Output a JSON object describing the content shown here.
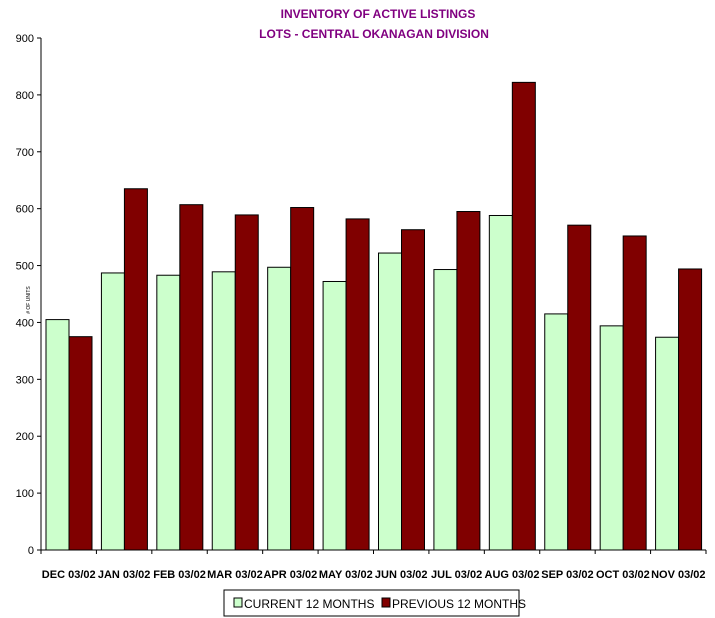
{
  "chart_data": {
    "type": "bar",
    "title": "INVENTORY OF ACTIVE LISTINGS",
    "subtitle": "LOTS - CENTRAL OKANAGAN DIVISION",
    "xlabel": "",
    "ylabel": "# OF UNITS",
    "ylim": [
      0,
      900
    ],
    "yticks": [
      0,
      100,
      200,
      300,
      400,
      500,
      600,
      700,
      800,
      900
    ],
    "categories": [
      "DEC 03/02",
      "JAN 03/02",
      "FEB 03/02",
      "MAR 03/02",
      "APR 03/02",
      "MAY 03/02",
      "JUN 03/02",
      "JUL 03/02",
      "AUG 03/02",
      "SEP 03/02",
      "OCT 03/02",
      "NOV 03/02"
    ],
    "series": [
      {
        "name": "CURRENT 12 MONTHS",
        "color": "#ccffcc",
        "values": [
          405,
          487,
          483,
          489,
          497,
          472,
          522,
          493,
          588,
          415,
          394,
          374
        ]
      },
      {
        "name": "PREVIOUS 12 MONTHS",
        "color": "#800000",
        "values": [
          375,
          635,
          607,
          589,
          602,
          582,
          563,
          595,
          822,
          571,
          552,
          494
        ]
      }
    ],
    "grid": false,
    "legend": "bottom",
    "title_color": "#800080"
  }
}
